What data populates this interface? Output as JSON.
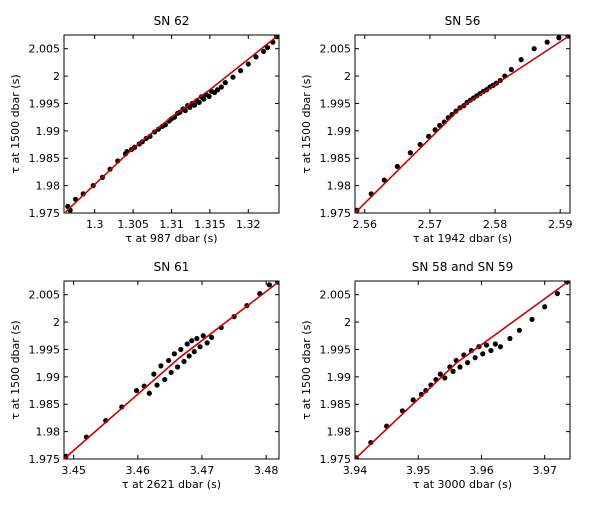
{
  "chart_data": [
    {
      "type": "scatter",
      "title": "SN 62",
      "xlabel": "τ at 987 dbar (s)",
      "ylabel": "τ at 1500 dbar (s)",
      "xlim": [
        1.296,
        1.324
      ],
      "ylim": [
        1.975,
        2.0075
      ],
      "xticks": [
        1.3,
        1.305,
        1.31,
        1.315,
        1.32
      ],
      "xtick_labels": [
        "1.3",
        "1.305",
        "1.31",
        "1.315",
        "1.32"
      ],
      "yticks": [
        1.975,
        1.98,
        1.985,
        1.99,
        1.995,
        2.0,
        2.005
      ],
      "ytick_labels": [
        "1.975",
        "1.98",
        "1.985",
        "1.99",
        "1.995",
        "2",
        "2.005"
      ],
      "series": [
        {
          "kind": "points",
          "color": "#000000",
          "x": [
            1.2965,
            1.2968,
            1.2975,
            1.2985,
            1.2998,
            1.301,
            1.302,
            1.303,
            1.304,
            1.3042,
            1.3048,
            1.3052,
            1.3058,
            1.3062,
            1.3067,
            1.3072,
            1.3078,
            1.3083,
            1.3088,
            1.3092,
            1.3097,
            1.31,
            1.3104,
            1.3108,
            1.3111,
            1.3115,
            1.3118,
            1.3121,
            1.3124,
            1.3127,
            1.313,
            1.3133,
            1.3136,
            1.3139,
            1.3142,
            1.3145,
            1.3149,
            1.3152,
            1.3156,
            1.316,
            1.3165,
            1.317,
            1.318,
            1.319,
            1.32,
            1.321,
            1.322,
            1.3225,
            1.3232,
            1.3237
          ],
          "y": [
            1.9762,
            1.9755,
            1.9775,
            1.9785,
            1.98,
            1.9815,
            1.983,
            1.9845,
            1.9858,
            1.9862,
            1.9866,
            1.987,
            1.9876,
            1.988,
            1.9886,
            1.989,
            1.9898,
            1.9903,
            1.9908,
            1.9911,
            1.9918,
            1.9922,
            1.9925,
            1.9932,
            1.9934,
            1.994,
            1.9937,
            1.9946,
            1.9943,
            1.995,
            1.9947,
            1.9955,
            1.9952,
            1.9962,
            1.9958,
            1.9966,
            1.9963,
            1.9972,
            1.997,
            1.9975,
            1.998,
            1.9988,
            1.9998,
            2.001,
            2.0022,
            2.0035,
            2.0045,
            2.0052,
            2.0062,
            2.0072
          ]
        },
        {
          "kind": "line",
          "color": "#cc0000",
          "x": [
            1.2962,
            1.305,
            1.31,
            1.315,
            1.3237
          ],
          "y": [
            1.9752,
            1.9868,
            1.9925,
            1.9975,
            2.0072
          ]
        }
      ]
    },
    {
      "type": "scatter",
      "title": "SN 56",
      "xlabel": "τ at 1942 dbar (s)",
      "ylabel": "τ at 1500 dbar (s)",
      "xlim": [
        2.5585,
        2.5915
      ],
      "ylim": [
        1.975,
        2.0075
      ],
      "xticks": [
        2.56,
        2.57,
        2.58,
        2.59
      ],
      "xtick_labels": [
        "2.56",
        "2.57",
        "2.58",
        "2.59"
      ],
      "yticks": [
        1.975,
        1.98,
        1.985,
        1.99,
        1.995,
        2.0,
        2.005
      ],
      "ytick_labels": [
        "1.975",
        "1.98",
        "1.985",
        "1.99",
        "1.995",
        "2",
        "2.005"
      ],
      "series": [
        {
          "kind": "points",
          "color": "#000000",
          "x": [
            2.5588,
            2.561,
            2.563,
            2.565,
            2.567,
            2.5685,
            2.5698,
            2.5708,
            2.5715,
            2.5722,
            2.5728,
            2.5734,
            2.574,
            2.5746,
            2.5752,
            2.5757,
            2.5762,
            2.5767,
            2.5772,
            2.5777,
            2.5782,
            2.5787,
            2.5792,
            2.5797,
            2.5802,
            2.5808,
            2.5815,
            2.5825,
            2.584,
            2.586,
            2.588,
            2.5898,
            2.5912
          ],
          "y": [
            1.9755,
            1.9785,
            1.981,
            1.9835,
            1.986,
            1.9875,
            1.989,
            1.9902,
            1.991,
            1.9916,
            1.9924,
            1.993,
            1.9936,
            1.9942,
            1.9946,
            1.9952,
            1.9956,
            1.996,
            1.9964,
            1.9968,
            1.9972,
            1.9975,
            1.998,
            1.9983,
            1.9987,
            1.9992,
            2.0,
            2.0012,
            2.003,
            2.005,
            2.0062,
            2.007,
            2.0073
          ]
        },
        {
          "kind": "line",
          "color": "#cc0000",
          "x": [
            2.5585,
            2.575,
            2.5912
          ],
          "y": [
            1.975,
            1.9945,
            2.0072
          ]
        }
      ]
    },
    {
      "type": "scatter",
      "title": "SN 61",
      "xlabel": "τ at 2621 dbar (s)",
      "ylabel": "τ at 1500 dbar (s)",
      "xlim": [
        3.4485,
        3.482
      ],
      "ylim": [
        1.975,
        2.0075
      ],
      "xticks": [
        3.45,
        3.46,
        3.47,
        3.48
      ],
      "xtick_labels": [
        "3.45",
        "3.46",
        "3.47",
        "3.48"
      ],
      "yticks": [
        1.975,
        1.98,
        1.985,
        1.99,
        1.995,
        2.0,
        2.005
      ],
      "ytick_labels": [
        "1.975",
        "1.98",
        "1.985",
        "1.99",
        "1.995",
        "2",
        "2.005"
      ],
      "series": [
        {
          "kind": "points",
          "color": "#000000",
          "x": [
            3.4488,
            3.452,
            3.455,
            3.4575,
            3.4598,
            3.461,
            3.4618,
            3.4625,
            3.463,
            3.4636,
            3.4642,
            3.4648,
            3.4652,
            3.4657,
            3.4662,
            3.4667,
            3.4672,
            3.4677,
            3.468,
            3.4684,
            3.4688,
            3.4692,
            3.4697,
            3.4702,
            3.4708,
            3.4715,
            3.473,
            3.475,
            3.477,
            3.479,
            3.4805,
            3.4818
          ],
          "y": [
            1.9755,
            1.979,
            1.982,
            1.9845,
            1.9875,
            1.9883,
            1.987,
            1.9905,
            1.9885,
            1.992,
            1.9895,
            1.993,
            1.9908,
            1.9942,
            1.9918,
            1.995,
            1.9928,
            1.996,
            1.9938,
            1.9966,
            1.9946,
            1.997,
            1.9955,
            1.9975,
            1.9962,
            1.9972,
            1.999,
            2.001,
            2.003,
            2.0052,
            2.0068,
            2.0073
          ]
        },
        {
          "kind": "line",
          "color": "#cc0000",
          "x": [
            3.4485,
            3.4665,
            3.4818
          ],
          "y": [
            1.975,
            1.9935,
            2.0072
          ]
        }
      ]
    },
    {
      "type": "scatter",
      "title": "SN 58 and SN 59",
      "xlabel": "τ at 3000 dbar (s)",
      "ylabel": "τ at 1500 dbar (s)",
      "xlim": [
        3.94,
        3.974
      ],
      "ylim": [
        1.975,
        2.0075
      ],
      "xticks": [
        3.94,
        3.95,
        3.96,
        3.97
      ],
      "xtick_labels": [
        "3.94",
        "3.95",
        "3.96",
        "3.97"
      ],
      "yticks": [
        1.975,
        1.98,
        1.985,
        1.99,
        1.995,
        2.0,
        2.005
      ],
      "ytick_labels": [
        "1.975",
        "1.98",
        "1.985",
        "1.99",
        "1.995",
        "2",
        "2.005"
      ],
      "series": [
        {
          "kind": "points",
          "color": "#000000",
          "x": [
            3.9402,
            3.9425,
            3.945,
            3.9475,
            3.9492,
            3.9505,
            3.9512,
            3.952,
            3.9528,
            3.9535,
            3.9542,
            3.955,
            3.9555,
            3.956,
            3.9566,
            3.9572,
            3.9578,
            3.9584,
            3.959,
            3.9596,
            3.9602,
            3.9608,
            3.9615,
            3.9622,
            3.963,
            3.9645,
            3.966,
            3.968,
            3.97,
            3.972,
            3.9735
          ],
          "y": [
            1.9752,
            1.978,
            1.981,
            1.9838,
            1.9858,
            1.9868,
            1.9875,
            1.9885,
            1.9895,
            1.9905,
            1.9898,
            1.9918,
            1.991,
            1.993,
            1.9918,
            1.994,
            1.9926,
            1.9948,
            1.9935,
            1.9955,
            1.9942,
            1.9958,
            1.9948,
            1.996,
            1.9955,
            1.997,
            1.9985,
            2.0005,
            2.0028,
            2.0052,
            2.0073
          ]
        },
        {
          "kind": "line",
          "color": "#cc0000",
          "x": [
            3.94,
            3.956,
            3.9735
          ],
          "y": [
            1.975,
            1.9925,
            2.0072
          ]
        }
      ]
    }
  ]
}
